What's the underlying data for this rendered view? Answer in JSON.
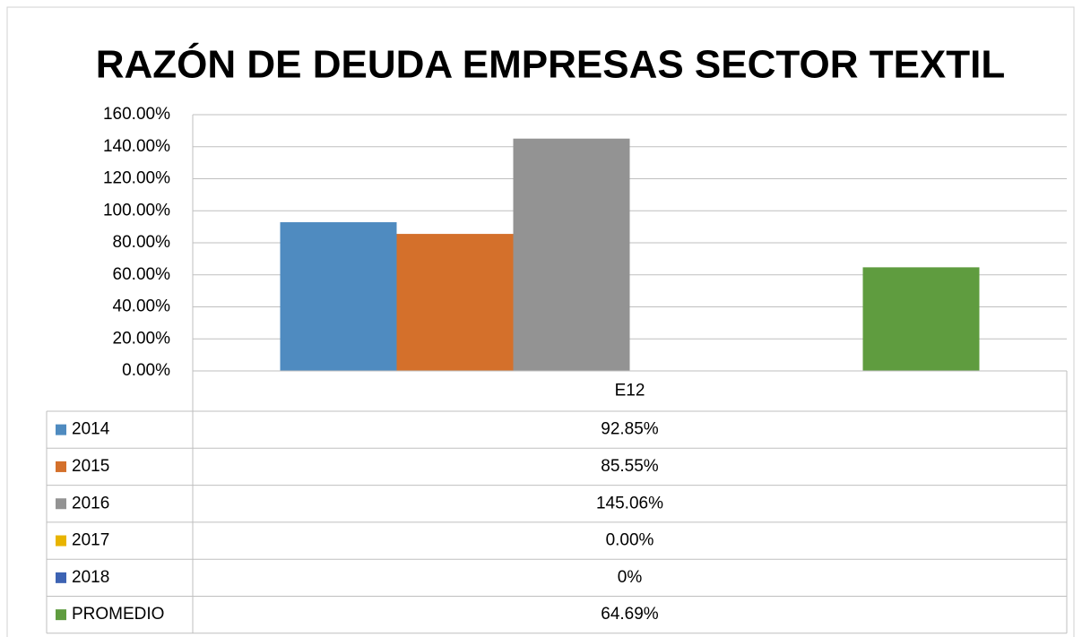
{
  "chart_data": {
    "type": "bar",
    "title": "RAZÓN DE DEUDA EMPRESAS SECTOR TEXTIL",
    "categories": [
      "E12"
    ],
    "series": [
      {
        "name": "2014",
        "color": "#4f8bc0",
        "values": [
          92.85
        ],
        "value_labels": [
          "92.85%"
        ]
      },
      {
        "name": "2015",
        "color": "#d4702b",
        "values": [
          85.55
        ],
        "value_labels": [
          "85.55%"
        ]
      },
      {
        "name": "2016",
        "color": "#939393",
        "values": [
          145.06
        ],
        "value_labels": [
          "145.06%"
        ]
      },
      {
        "name": "2017",
        "color": "#e8b400",
        "values": [
          0
        ],
        "value_labels": [
          "0.00%"
        ]
      },
      {
        "name": "2018",
        "color": "#3d63b3",
        "values": [
          0
        ],
        "value_labels": [
          "0%"
        ]
      },
      {
        "name": "PROMEDIO",
        "color": "#5f9c3f",
        "values": [
          64.69
        ],
        "value_labels": [
          "64.69%"
        ]
      }
    ],
    "ylim": [
      0,
      160
    ],
    "yticks": [
      {
        "value": 0,
        "label": "0.00%"
      },
      {
        "value": 20,
        "label": "20.00%"
      },
      {
        "value": 40,
        "label": "40.00%"
      },
      {
        "value": 60,
        "label": "60.00%"
      },
      {
        "value": 80,
        "label": "80.00%"
      },
      {
        "value": 100,
        "label": "100.00%"
      },
      {
        "value": 120,
        "label": "120.00%"
      },
      {
        "value": 140,
        "label": "140.00%"
      },
      {
        "value": 160,
        "label": "160.00%"
      }
    ],
    "grid": true
  }
}
